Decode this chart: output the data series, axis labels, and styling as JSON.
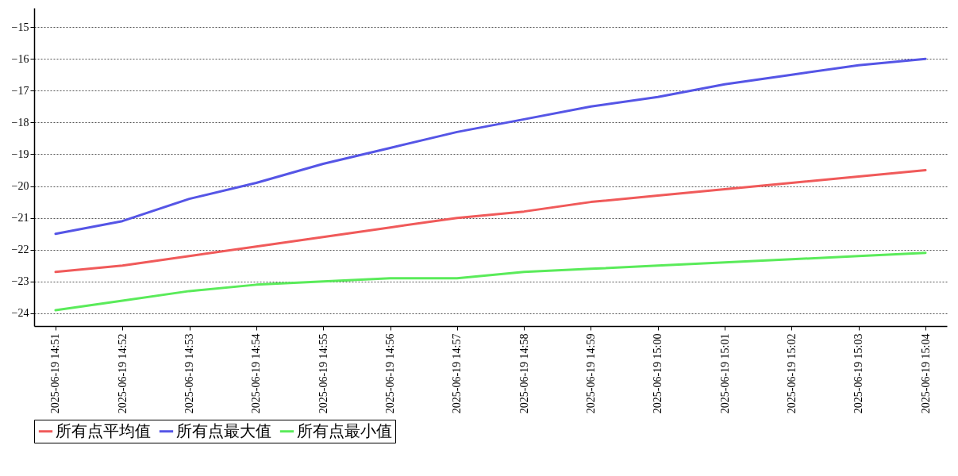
{
  "chart_data": {
    "type": "line",
    "categories": [
      "2025-06-19 14:51",
      "2025-06-19 14:52",
      "2025-06-19 14:53",
      "2025-06-19 14:54",
      "2025-06-19 14:55",
      "2025-06-19 14:56",
      "2025-06-19 14:57",
      "2025-06-19 14:58",
      "2025-06-19 14:59",
      "2025-06-19 15:00",
      "2025-06-19 15:01",
      "2025-06-19 15:02",
      "2025-06-19 15:03",
      "2025-06-19 15:04"
    ],
    "series": [
      {
        "name": "所有点平均值",
        "color": "#f05a5a",
        "values": [
          -22.7,
          -22.5,
          -22.2,
          -21.9,
          -21.6,
          -21.3,
          -21.0,
          -20.8,
          -20.5,
          -20.3,
          -20.1,
          -19.9,
          -19.7,
          -19.5
        ]
      },
      {
        "name": "所有点最大值",
        "color": "#5555e6",
        "values": [
          -21.5,
          -21.1,
          -20.4,
          -19.9,
          -19.3,
          -18.8,
          -18.3,
          -17.9,
          -17.5,
          -17.2,
          -16.8,
          -16.5,
          -16.2,
          -16.0
        ]
      },
      {
        "name": "所有点最小值",
        "color": "#5aeb5a",
        "values": [
          -23.9,
          -23.6,
          -23.3,
          -23.1,
          -23.0,
          -22.9,
          -22.9,
          -22.7,
          -22.6,
          -22.5,
          -22.4,
          -22.3,
          -22.2,
          -22.1
        ]
      }
    ],
    "ylim": [
      -24.4,
      -14.4
    ],
    "yticks": [
      -24,
      -23,
      -22,
      -21,
      -20,
      -19,
      -18,
      -17,
      -16,
      -15
    ],
    "grid": "y",
    "legend": "bottom",
    "marker": "none",
    "line_style": "solid"
  }
}
